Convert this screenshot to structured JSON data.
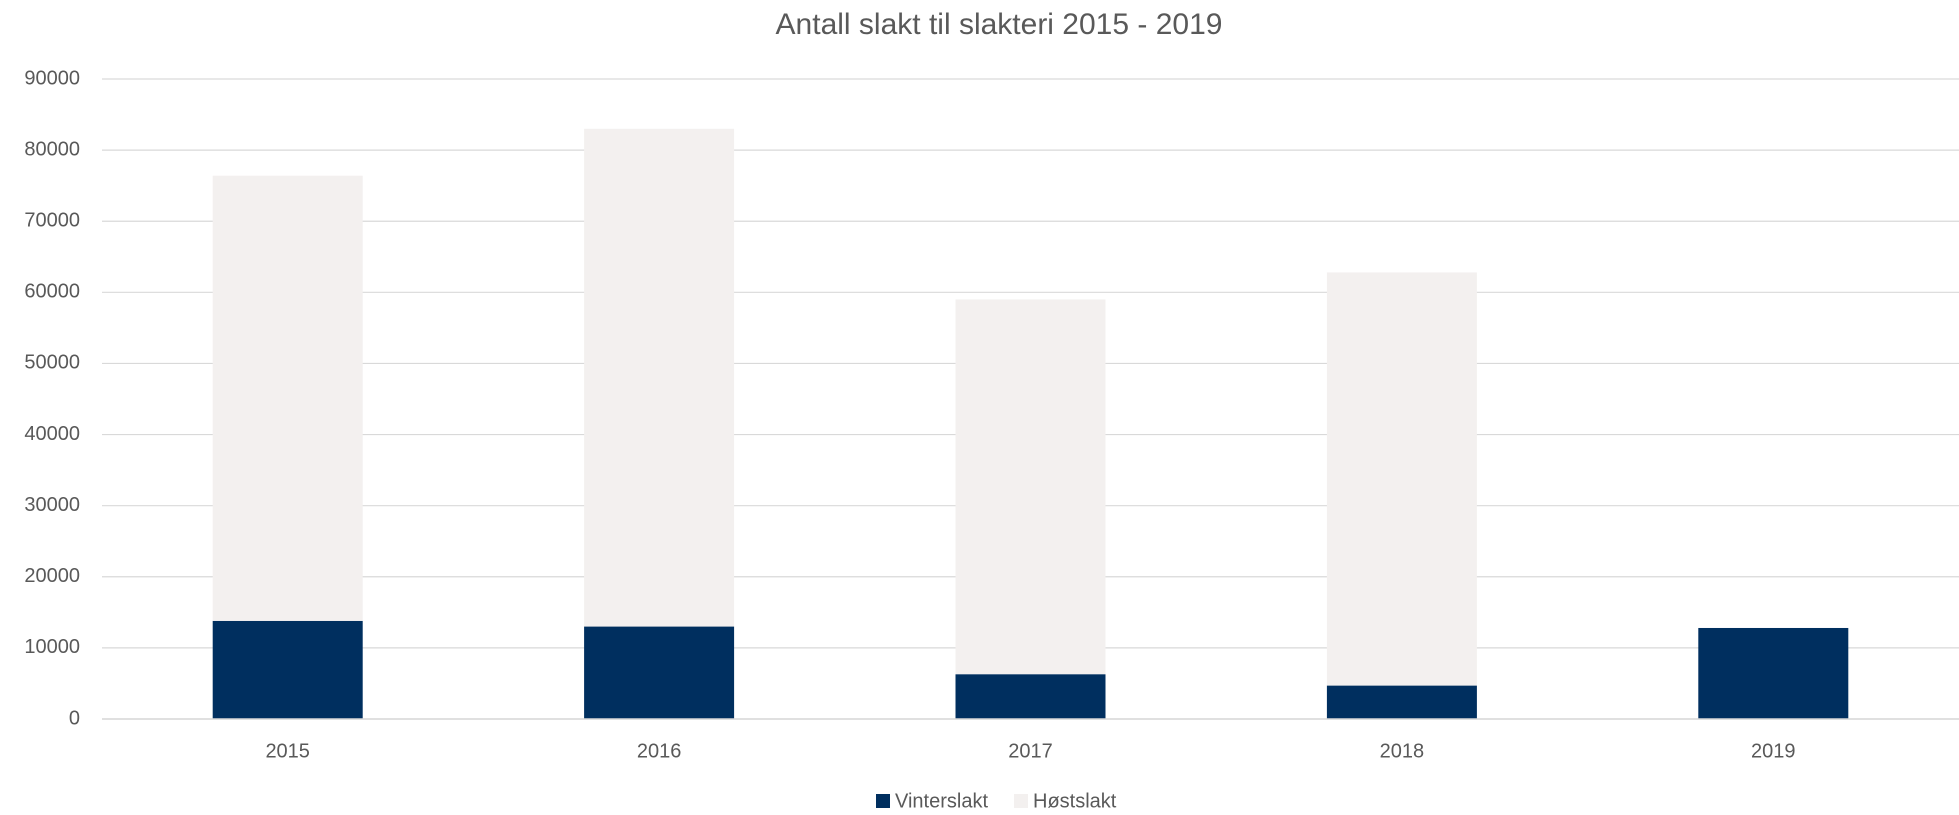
{
  "chart_data": {
    "type": "stacked_bar",
    "title": "Antall slakt til slakteri 2015 - 2019",
    "categories": [
      "2015",
      "2016",
      "2017",
      "2018",
      "2019"
    ],
    "series": [
      {
        "name": "Vinterslakt",
        "color": "#002f5f",
        "values": [
          13800,
          13000,
          6300,
          4700,
          12800
        ]
      },
      {
        "name": "Høstslakt",
        "color": "#f3f0ef",
        "values": [
          62600,
          70000,
          52700,
          58100,
          null
        ]
      }
    ],
    "ylim": [
      0,
      90000
    ],
    "yticks": [
      0,
      10000,
      20000,
      30000,
      40000,
      50000,
      60000,
      70000,
      80000,
      90000
    ],
    "grid": true,
    "legend": "bottom"
  }
}
